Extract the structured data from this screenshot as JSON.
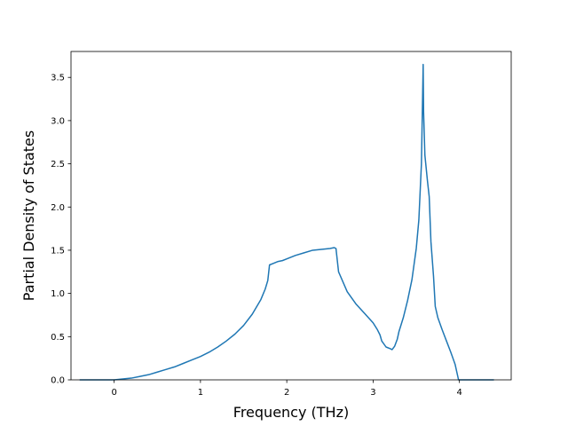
{
  "chart_data": {
    "type": "line",
    "title": "",
    "xlabel": "Frequency (THz)",
    "ylabel": "Partial Density of States",
    "xlim": [
      -0.5,
      4.6
    ],
    "ylim": [
      0.0,
      3.8
    ],
    "xticks": [
      0,
      1,
      2,
      3,
      4
    ],
    "xtick_labels": [
      "0",
      "1",
      "2",
      "3",
      "4"
    ],
    "yticks": [
      0.0,
      0.5,
      1.0,
      1.5,
      2.0,
      2.5,
      3.0,
      3.5
    ],
    "ytick_labels": [
      "0.0",
      "0.5",
      "1.0",
      "1.5",
      "2.0",
      "2.5",
      "3.0",
      "3.5"
    ],
    "grid": false,
    "legend": "none",
    "series": [
      {
        "color": "#1f77b4",
        "x": [
          -0.4,
          0.0,
          0.1,
          0.2,
          0.3,
          0.4,
          0.5,
          0.6,
          0.7,
          0.8,
          0.9,
          1.0,
          1.1,
          1.2,
          1.3,
          1.4,
          1.5,
          1.6,
          1.7,
          1.75,
          1.78,
          1.8,
          1.85,
          1.9,
          1.95,
          2.0,
          2.1,
          2.2,
          2.3,
          2.4,
          2.5,
          2.55,
          2.57,
          2.6,
          2.7,
          2.8,
          2.9,
          3.0,
          3.05,
          3.08,
          3.1,
          3.15,
          3.2,
          3.22,
          3.25,
          3.28,
          3.3,
          3.35,
          3.4,
          3.45,
          3.5,
          3.53,
          3.56,
          3.58,
          3.585,
          3.6,
          3.63,
          3.65,
          3.67,
          3.7,
          3.72,
          3.75,
          3.8,
          3.85,
          3.9,
          3.95,
          3.99,
          4.0,
          4.1,
          4.2,
          4.3,
          4.4
        ],
        "y": [
          0.0,
          0.0,
          0.01,
          0.02,
          0.04,
          0.06,
          0.09,
          0.12,
          0.15,
          0.19,
          0.23,
          0.27,
          0.32,
          0.38,
          0.45,
          0.53,
          0.63,
          0.76,
          0.93,
          1.05,
          1.15,
          1.33,
          1.35,
          1.37,
          1.38,
          1.4,
          1.44,
          1.47,
          1.5,
          1.51,
          1.52,
          1.53,
          1.52,
          1.25,
          1.02,
          0.88,
          0.77,
          0.66,
          0.58,
          0.52,
          0.45,
          0.38,
          0.36,
          0.35,
          0.39,
          0.47,
          0.56,
          0.72,
          0.92,
          1.16,
          1.52,
          1.85,
          2.5,
          3.65,
          3.1,
          2.6,
          2.3,
          2.12,
          1.6,
          1.2,
          0.85,
          0.72,
          0.58,
          0.45,
          0.32,
          0.18,
          0.0,
          0.0,
          0.0,
          0.0,
          0.0,
          0.0
        ]
      }
    ]
  }
}
